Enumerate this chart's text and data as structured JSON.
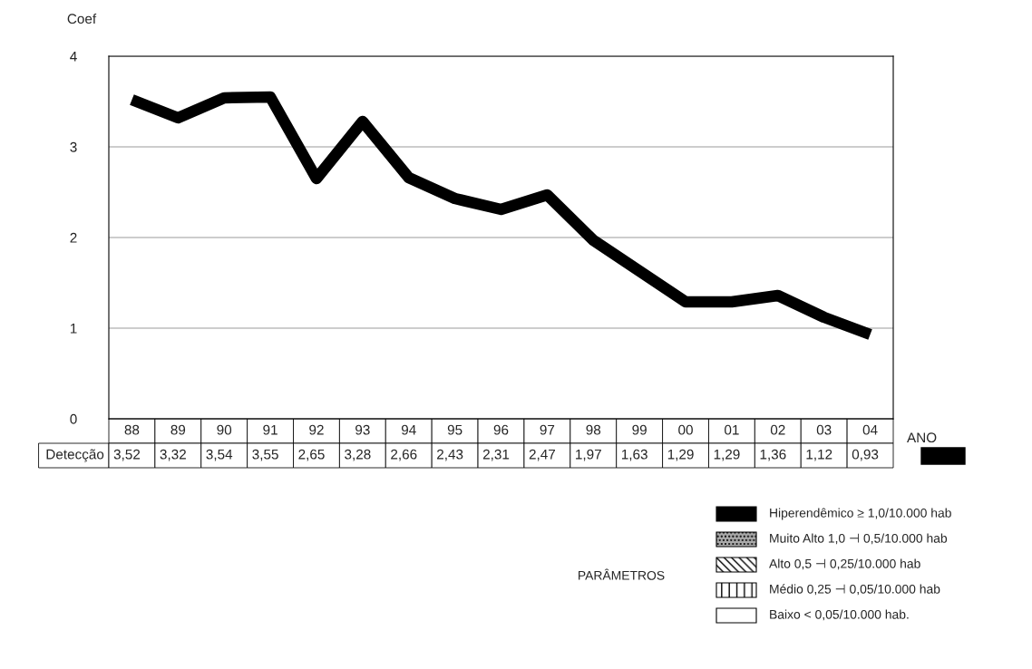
{
  "chart_data": {
    "type": "line",
    "ylabel": "Coef",
    "xlabel": "ANO",
    "categories": [
      "88",
      "89",
      "90",
      "91",
      "92",
      "93",
      "94",
      "95",
      "96",
      "97",
      "98",
      "99",
      "00",
      "01",
      "02",
      "03",
      "04"
    ],
    "series": [
      {
        "name": "Detecção",
        "color": "#000000",
        "values": [
          3.52,
          3.32,
          3.54,
          3.55,
          2.65,
          3.28,
          2.66,
          2.43,
          2.31,
          2.47,
          1.97,
          1.63,
          1.29,
          1.29,
          1.36,
          1.12,
          0.93
        ],
        "value_labels": [
          "3,52",
          "3,32",
          "3,54",
          "3,55",
          "2,65",
          "3,28",
          "2,66",
          "2,43",
          "2,31",
          "2,47",
          "1,97",
          "1,63",
          "1,29",
          "1,29",
          "1,36",
          "1,12",
          "0,93"
        ]
      }
    ],
    "ylim": [
      0,
      4
    ],
    "yticks": [
      0,
      1,
      2,
      3,
      4
    ],
    "grid": "y",
    "marker": "none",
    "line_style": "solid",
    "annotations": [
      "PARÂMETROS",
      "Hiperendêmico ≥ 1,0/10.000 hab",
      "Muito Alto 1,0 ⊣ 0,5/10.000 hab",
      "Alto 0,5 ⊣ 0,25/10.000 hab",
      "Médio 0,25 ⊣ 0,05/10.000 hab",
      "Baixo < 0,05/10.000 hab."
    ]
  }
}
